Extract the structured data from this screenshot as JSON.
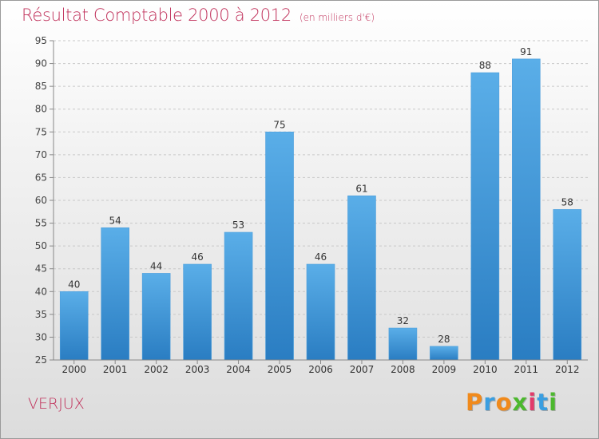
{
  "header": {
    "title": "Résultat Comptable 2000 à 2012",
    "subtitle": "(en milliers d'€)"
  },
  "footer": {
    "place": "VERJUX",
    "logo_text": "Proxiti"
  },
  "colors": {
    "title": "#c0305a",
    "bar_top": "#5aaee8",
    "bar_bottom": "#2a7dc2",
    "grid": "#c8c8c8",
    "logo": [
      "#f08a1c",
      "#3a9ee0",
      "#f08a1c",
      "#4cb82e",
      "#e23a6a",
      "#3a9ee0",
      "#4cb82e"
    ]
  },
  "chart_data": {
    "type": "bar",
    "title": "Résultat Comptable 2000 à 2012",
    "subtitle": "(en milliers d'€)",
    "xlabel": "",
    "ylabel": "",
    "categories": [
      "2000",
      "2001",
      "2002",
      "2003",
      "2004",
      "2005",
      "2006",
      "2007",
      "2008",
      "2009",
      "2010",
      "2011",
      "2012"
    ],
    "values": [
      40,
      54,
      44,
      46,
      53,
      75,
      46,
      61,
      32,
      28,
      88,
      91,
      58
    ],
    "ylim": [
      25,
      95
    ],
    "yticks": [
      25,
      30,
      35,
      40,
      45,
      50,
      55,
      60,
      65,
      70,
      75,
      80,
      85,
      90,
      95
    ],
    "grid": true,
    "data_labels": true
  }
}
